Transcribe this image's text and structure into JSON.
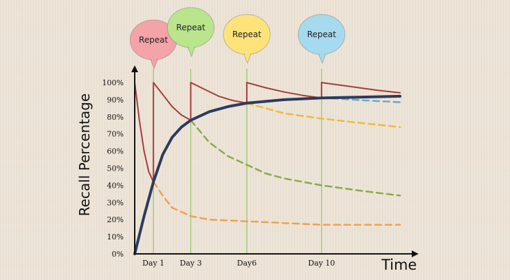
{
  "chart_data": {
    "type": "line",
    "title": "",
    "xlabel": "Time",
    "ylabel": "Recall Percentage",
    "x_tick_labels": [
      {
        "label": "Day 1",
        "x": 1
      },
      {
        "label": "Day 3",
        "x": 3
      },
      {
        "label": "Day6",
        "x": 6
      },
      {
        "label": "Day 10",
        "x": 10
      }
    ],
    "y_tick_labels": [
      "0%",
      "10%",
      "20%",
      "30%",
      "40%",
      "50%",
      "60%",
      "70%",
      "80%",
      "90%",
      "100%"
    ],
    "y_ticks": [
      0,
      10,
      20,
      30,
      40,
      50,
      60,
      70,
      80,
      90,
      100
    ],
    "xlim": [
      0,
      14.2
    ],
    "ylim": [
      0,
      100
    ],
    "grid": false,
    "repeat_label": "Repeat",
    "repeats": [
      {
        "x": 1,
        "label": "Repeat",
        "color": "#f4a3a8"
      },
      {
        "x": 3,
        "label": "Repeat",
        "color": "#b9e58c"
      },
      {
        "x": 6,
        "label": "Repeat",
        "color": "#fde37a"
      },
      {
        "x": 10,
        "label": "Repeat",
        "color": "#a6daee"
      }
    ],
    "series": [
      {
        "style": "solid",
        "color": "#2d3a5e",
        "width": 4,
        "points": [
          [
            0,
            0
          ],
          [
            0.5,
            22
          ],
          [
            1,
            42
          ],
          [
            1.5,
            58
          ],
          [
            2,
            68
          ],
          [
            2.5,
            74
          ],
          [
            3,
            78
          ],
          [
            4,
            83
          ],
          [
            5,
            86
          ],
          [
            6,
            88
          ],
          [
            8,
            90
          ],
          [
            10,
            91
          ],
          [
            12,
            91.5
          ],
          [
            14.2,
            92
          ]
        ]
      },
      {
        "style": "solid",
        "color": "#a83a3c",
        "width": 2,
        "points": [
          [
            0,
            100
          ],
          [
            0.25,
            78
          ],
          [
            0.5,
            60
          ],
          [
            0.75,
            48
          ],
          [
            1,
            42
          ],
          [
            1,
            100
          ],
          [
            1.5,
            93
          ],
          [
            2,
            86
          ],
          [
            2.5,
            81
          ],
          [
            3,
            78
          ],
          [
            3,
            100
          ],
          [
            3.75,
            96
          ],
          [
            4.5,
            92
          ],
          [
            5.25,
            89.5
          ],
          [
            6,
            88
          ],
          [
            6,
            100
          ],
          [
            7,
            97
          ],
          [
            8,
            94.5
          ],
          [
            9,
            92.5
          ],
          [
            10,
            91
          ],
          [
            10,
            100
          ],
          [
            11,
            98.5
          ],
          [
            12,
            97
          ],
          [
            13,
            95.5
          ],
          [
            14.2,
            94
          ]
        ]
      },
      {
        "style": "dashed",
        "color": "#f0a050",
        "width": 2.5,
        "points": [
          [
            1,
            42
          ],
          [
            1.5,
            34
          ],
          [
            2,
            27
          ],
          [
            3,
            22
          ],
          [
            4,
            20
          ],
          [
            6,
            19
          ],
          [
            8,
            18
          ],
          [
            10,
            17
          ],
          [
            12,
            17
          ],
          [
            14.2,
            17
          ]
        ]
      },
      {
        "style": "dashed",
        "color": "#8aaa48",
        "width": 2.5,
        "points": [
          [
            3,
            78
          ],
          [
            4,
            65
          ],
          [
            5,
            57
          ],
          [
            6,
            52
          ],
          [
            7,
            47
          ],
          [
            8,
            44
          ],
          [
            10,
            40
          ],
          [
            12,
            37
          ],
          [
            14.2,
            34
          ]
        ]
      },
      {
        "style": "dashed",
        "color": "#eeba3a",
        "width": 2.5,
        "points": [
          [
            6,
            88
          ],
          [
            7,
            85
          ],
          [
            8,
            82
          ],
          [
            10,
            79
          ],
          [
            12,
            76.5
          ],
          [
            14.2,
            74
          ]
        ]
      },
      {
        "style": "dashed",
        "color": "#6aa8c8",
        "width": 2.5,
        "points": [
          [
            10,
            91
          ],
          [
            11,
            90.5
          ],
          [
            12,
            89.8
          ],
          [
            13,
            89.2
          ],
          [
            14.2,
            88.5
          ]
        ]
      }
    ]
  }
}
